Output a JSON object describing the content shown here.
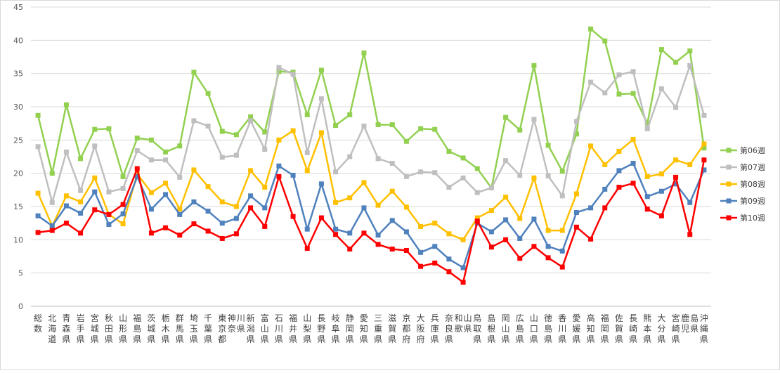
{
  "chart_data": {
    "type": "line",
    "title": "",
    "xlabel": "",
    "ylabel": "",
    "ylim": [
      0,
      45
    ],
    "yticks": [
      0,
      5,
      10,
      15,
      20,
      25,
      30,
      35,
      40,
      45
    ],
    "grid": "horizontal",
    "legend_position": "right",
    "categories": [
      "総数",
      "北海道",
      "青森県",
      "岩手県",
      "宮城県",
      "秋田県",
      "山形県",
      "福島県",
      "茨城県",
      "栃木県",
      "群馬県",
      "埼玉県",
      "千葉県",
      "東京都",
      "神奈川県",
      "新潟県",
      "富山県",
      "石川県",
      "福井県",
      "山梨県",
      "長野県",
      "岐阜県",
      "静岡県",
      "愛知県",
      "三重県",
      "滋賀県",
      "京都府",
      "大阪府",
      "兵庫県",
      "奈良県",
      "和歌山県",
      "鳥取県",
      "島根県",
      "岡山県",
      "広島県",
      "山口県",
      "徳島県",
      "香川県",
      "愛媛県",
      "高知県",
      "福岡県",
      "佐賀県",
      "長崎県",
      "熊本県",
      "大分県",
      "宮崎県",
      "鹿児島県",
      "沖縄県"
    ],
    "series": [
      {
        "name": "第06週",
        "color": "#92d050",
        "values": [
          28.7,
          20.0,
          30.3,
          22.2,
          26.6,
          26.7,
          19.5,
          25.3,
          25.0,
          23.2,
          24.1,
          35.2,
          32.0,
          26.3,
          25.8,
          28.5,
          26.2,
          35.3,
          35.2,
          28.8,
          35.5,
          27.2,
          28.8,
          38.1,
          27.3,
          27.3,
          24.8,
          26.7,
          26.6,
          23.3,
          22.3,
          20.7,
          17.8,
          28.4,
          26.5,
          36.2,
          24.2,
          20.3,
          25.9,
          41.7,
          39.9,
          31.9,
          32.0,
          27.5,
          38.6,
          36.7,
          38.4,
          23.8
        ]
      },
      {
        "name": "第07週",
        "color": "#bfbfbf",
        "values": [
          24.0,
          15.6,
          23.2,
          17.4,
          24.1,
          17.2,
          17.7,
          23.4,
          22.0,
          22.0,
          19.4,
          27.9,
          27.1,
          22.4,
          22.7,
          27.9,
          23.6,
          35.9,
          34.9,
          23.1,
          31.2,
          20.2,
          22.5,
          27.1,
          22.2,
          21.5,
          19.5,
          20.2,
          20.1,
          17.9,
          19.3,
          17.1,
          17.8,
          21.9,
          19.7,
          28.1,
          19.6,
          16.6,
          27.8,
          33.7,
          32.1,
          34.8,
          35.3,
          26.7,
          32.7,
          29.9,
          36.2,
          28.7
        ]
      },
      {
        "name": "第08週",
        "color": "#ffc000",
        "values": [
          17.0,
          12.1,
          16.6,
          15.7,
          19.3,
          13.8,
          12.4,
          19.9,
          17.1,
          18.5,
          14.6,
          20.5,
          18.0,
          15.7,
          15.0,
          20.4,
          17.9,
          25.0,
          26.4,
          20.4,
          26.1,
          15.6,
          16.3,
          18.6,
          15.2,
          17.3,
          14.9,
          12.0,
          12.5,
          10.9,
          10.0,
          13.3,
          14.4,
          16.4,
          13.2,
          19.3,
          11.4,
          11.4,
          16.9,
          24.1,
          21.3,
          23.3,
          25.1,
          19.5,
          19.9,
          22.0,
          21.3,
          24.4
        ]
      },
      {
        "name": "第09週",
        "color": "#4f81bd",
        "values": [
          13.6,
          12.1,
          15.1,
          14.0,
          17.2,
          12.3,
          13.9,
          19.5,
          14.6,
          16.8,
          13.8,
          15.7,
          14.3,
          12.5,
          13.2,
          16.6,
          14.8,
          21.1,
          19.7,
          11.6,
          18.4,
          11.6,
          11.0,
          14.8,
          10.7,
          12.9,
          11.2,
          8.1,
          9.0,
          7.1,
          5.8,
          12.5,
          11.2,
          13.0,
          10.2,
          13.1,
          9.0,
          8.3,
          14.1,
          14.8,
          17.6,
          20.4,
          21.5,
          16.5,
          17.3,
          18.4,
          15.6,
          20.5
        ]
      },
      {
        "name": "第10週",
        "color": "#ff0000",
        "values": [
          11.1,
          11.4,
          12.5,
          11.0,
          14.5,
          13.8,
          15.3,
          20.7,
          11.0,
          11.8,
          10.7,
          12.4,
          11.3,
          10.2,
          10.9,
          14.8,
          12.0,
          19.5,
          13.5,
          8.7,
          13.3,
          10.8,
          8.6,
          11.0,
          9.3,
          8.6,
          8.4,
          6.0,
          6.5,
          5.2,
          3.6,
          12.8,
          8.9,
          10.0,
          7.2,
          9.0,
          7.3,
          5.9,
          11.9,
          10.1,
          14.8,
          17.9,
          18.5,
          14.6,
          13.6,
          19.4,
          10.8,
          22.0
        ]
      }
    ]
  }
}
